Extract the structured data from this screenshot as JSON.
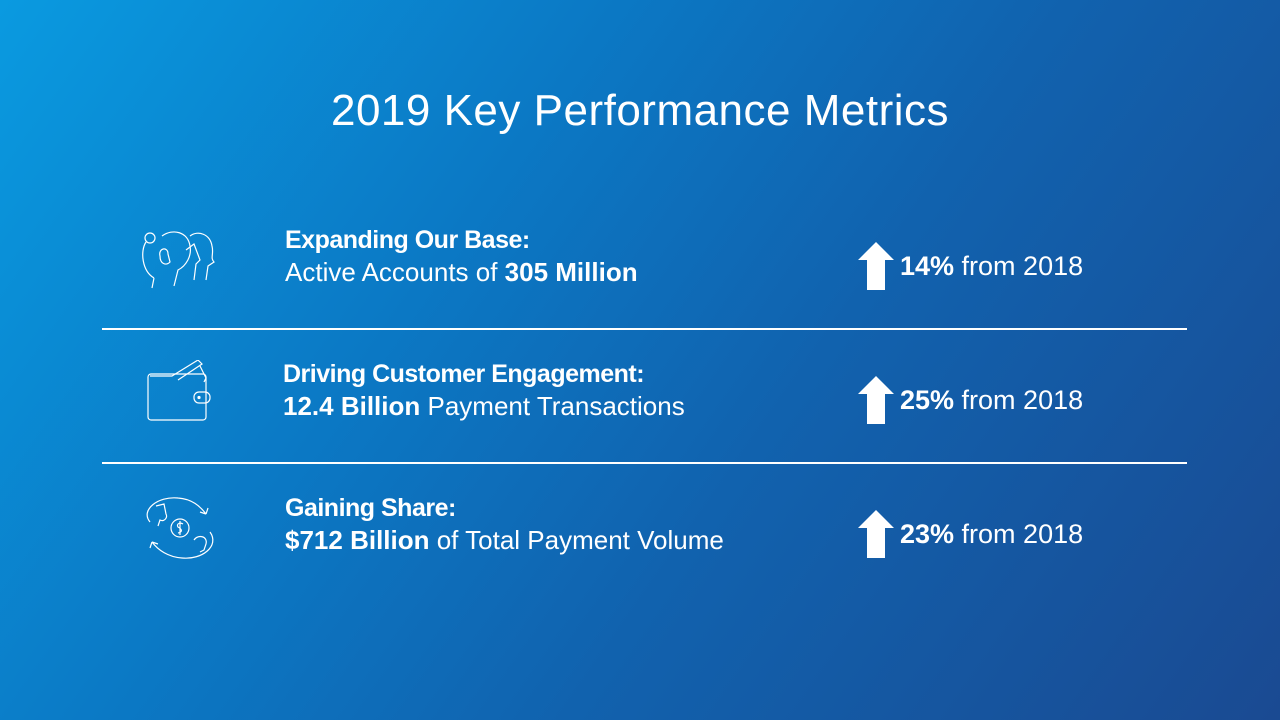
{
  "title": "2019 Key Performance Metrics",
  "metrics": [
    {
      "icon": "people-icon",
      "heading": "Expanding Our Base:",
      "pre": "Active Accounts of ",
      "bold": "305 Million",
      "post": "",
      "change_bold": "14%",
      "change_text": " from 2018"
    },
    {
      "icon": "wallet-icon",
      "heading": "Driving Customer Engagement:",
      "pre": "",
      "bold": "12.4 Billion",
      "post": " Payment Transactions",
      "change_bold": "25%",
      "change_text": " from 2018"
    },
    {
      "icon": "money-exchange-icon",
      "heading": "Gaining Share:",
      "pre": "",
      "bold": "$712 Billion",
      "post": " of Total Payment Volume",
      "change_bold": "23%",
      "change_text": " from 2018"
    }
  ],
  "colors": {
    "bg_start": "#0a9ae0",
    "bg_end": "#1a4a92",
    "text": "#ffffff"
  }
}
